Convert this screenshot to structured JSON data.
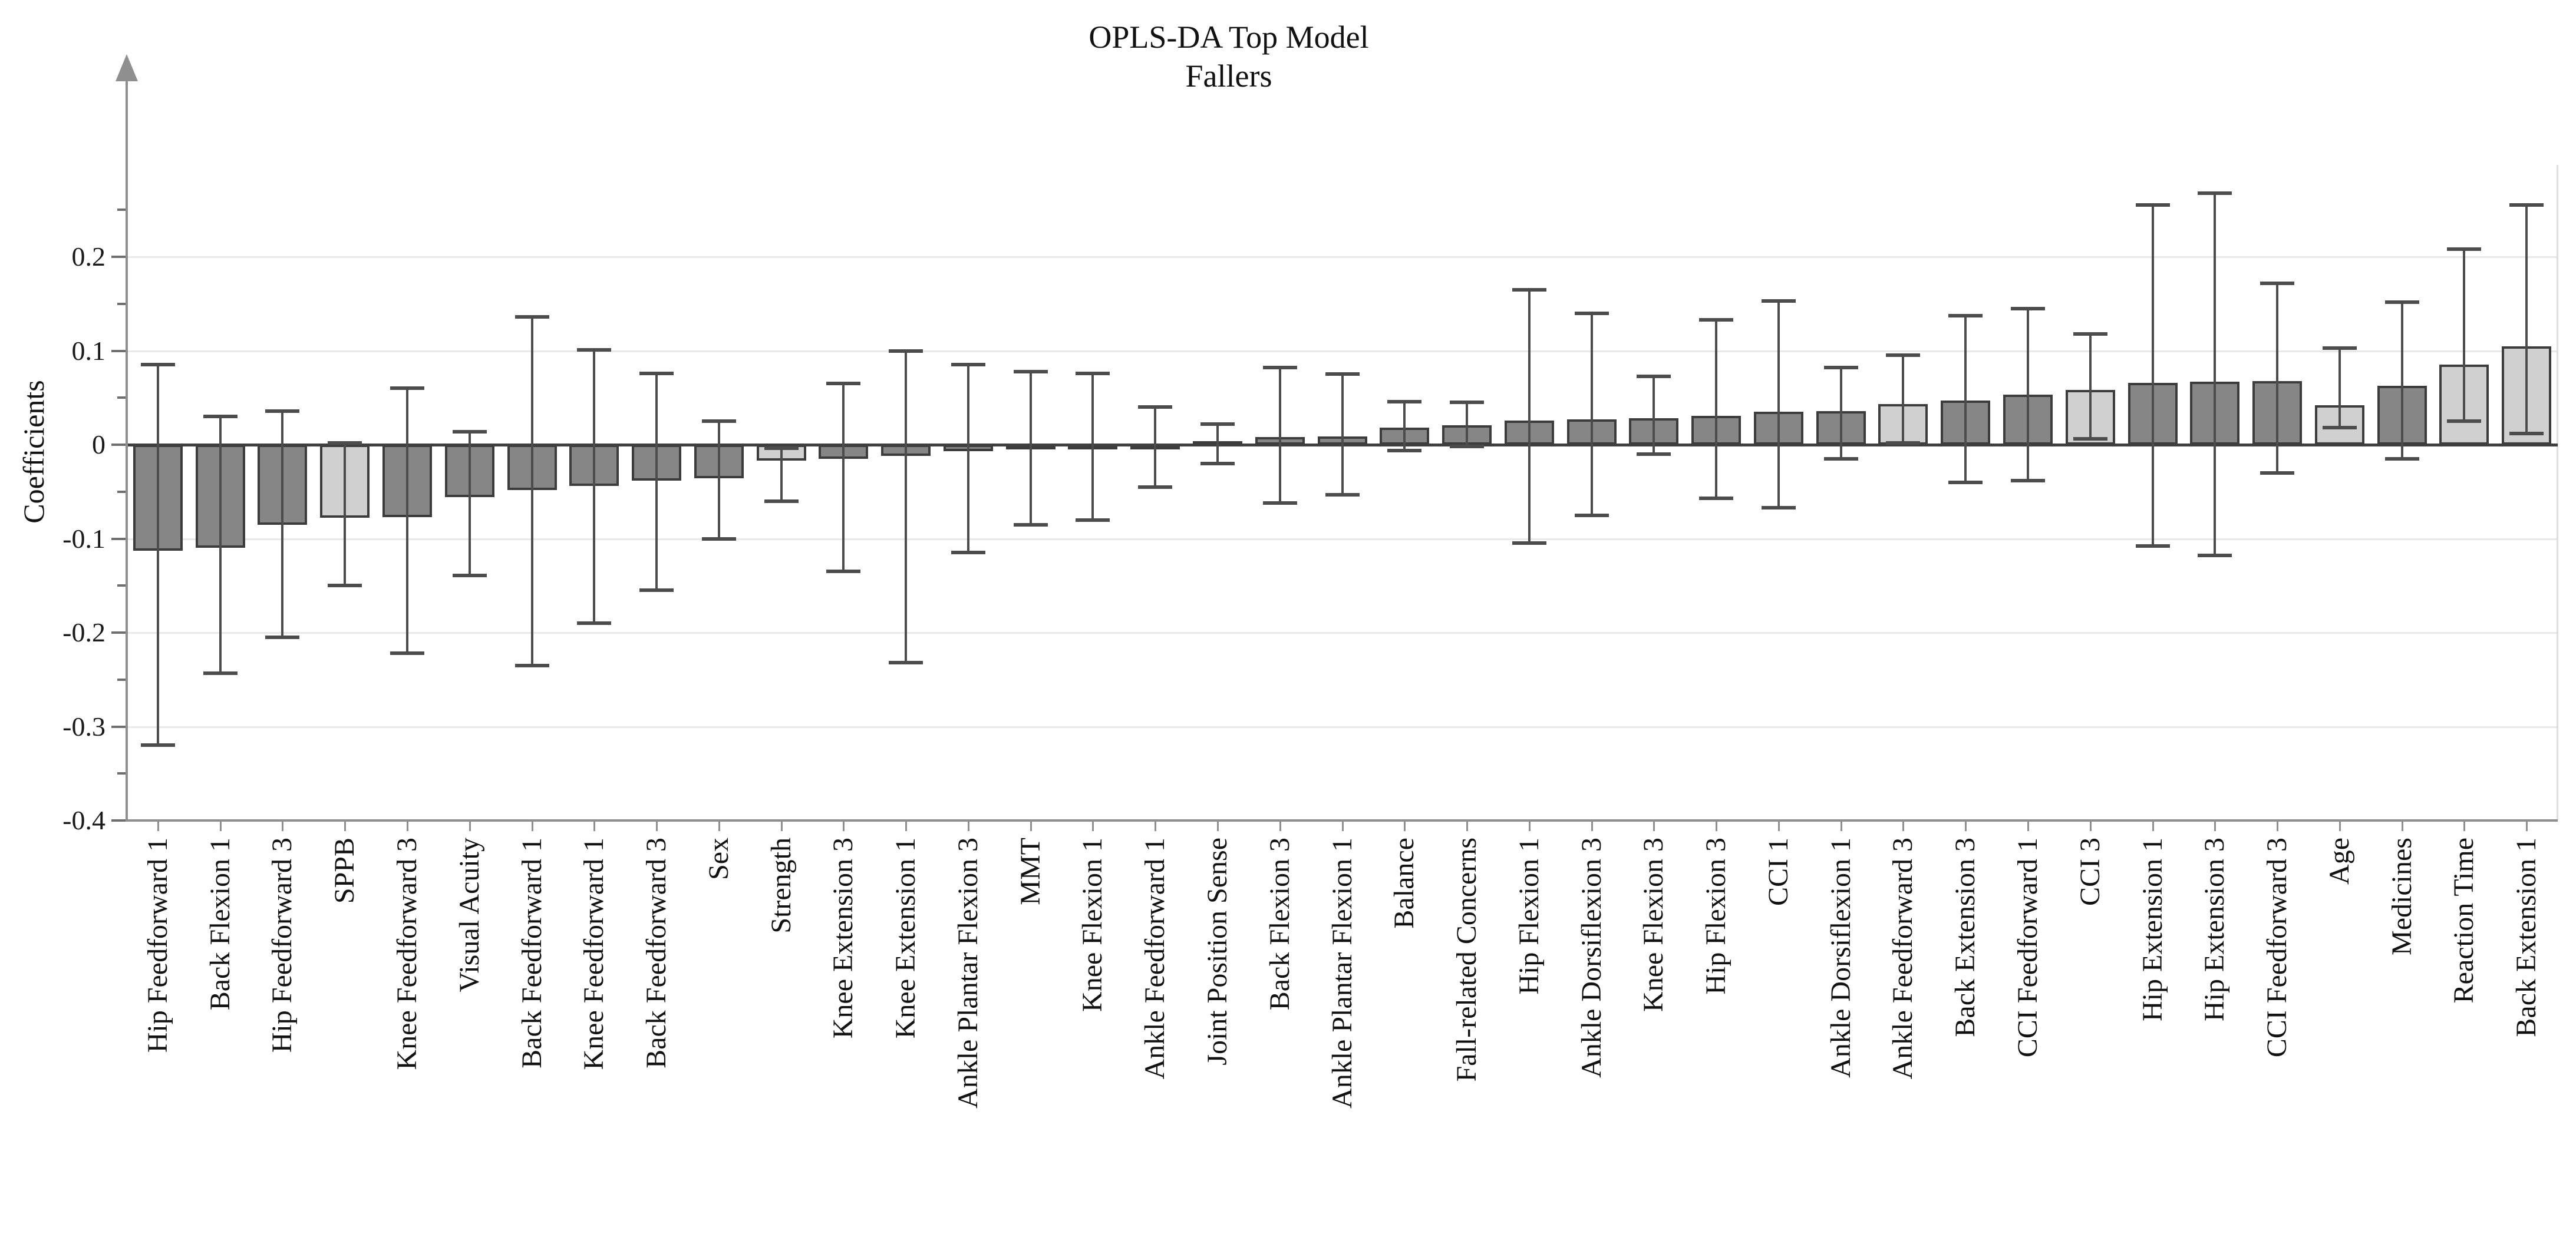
{
  "title": "OPLS-DA Top Model",
  "subtitle": "Fallers",
  "chart_data": {
    "type": "bar",
    "title": "OPLS-DA Top Model",
    "subtitle": "Fallers",
    "xlabel": "",
    "ylabel": "Coefficients",
    "ylim": [
      -0.4,
      0.27
    ],
    "grid": "horizontal",
    "legend_position": "none",
    "ytick_labels": [
      "0.2",
      "0.1",
      "0",
      "-0.1",
      "-0.2",
      "-0.3",
      "-0.4"
    ],
    "ytick_values": [
      0.2,
      0.1,
      0,
      -0.1,
      -0.2,
      -0.3,
      -0.4
    ],
    "minor_tick_values": [
      0.25,
      0.15,
      0.05,
      -0.05,
      -0.15,
      -0.25,
      -0.35
    ],
    "bar_color_dark": "#868686",
    "bar_color_light": "#d0d0d0",
    "bar_border_color": "#3c3c3c",
    "error_bar_color": "#4c4c4c",
    "categories": [
      "Hip Feedforward 1",
      "Back Flexion 1",
      "Hip Feedforward 3",
      "SPPB",
      "Knee Feedforward 3",
      "Visual Acuity",
      "Back Feedforward 1",
      "Knee Feedforward 1",
      "Back Feedforward 3",
      "Sex",
      "Strength",
      "Knee Extension 3",
      "Knee Extension 1",
      "Ankle Plantar Flexion 3",
      "MMT",
      "Knee Flexion 1",
      "Ankle Feedforward 1",
      "Joint Position Sense",
      "Back Flexion 3",
      "Ankle Plantar Flexion 1",
      "Balance",
      "Fall-related Concerns",
      "Hip Flexion 1",
      "Ankle Dorsiflexion 3",
      "Knee Flexion 3",
      "Hip Flexion 3",
      "CCI 1",
      "Ankle Dorsiflexion 1",
      "Ankle Feedforward 3",
      "Back Extension 3",
      "CCI Feedforward 1",
      "CCI 3",
      "Hip Extension 1",
      "Hip Extension 3",
      "CCI Feedforward 3",
      "Age",
      "Medicines",
      "Reaction Time",
      "Back Extension 1"
    ],
    "values": [
      -0.113,
      -0.11,
      -0.085,
      -0.078,
      -0.077,
      -0.056,
      -0.048,
      -0.044,
      -0.038,
      -0.036,
      -0.017,
      -0.015,
      -0.012,
      -0.007,
      -0.004,
      -0.003,
      -0.003,
      0.004,
      0.008,
      0.009,
      0.018,
      0.021,
      0.026,
      0.027,
      0.028,
      0.031,
      0.035,
      0.036,
      0.043,
      0.047,
      0.053,
      0.058,
      0.066,
      0.067,
      0.068,
      0.042,
      0.063,
      0.085,
      0.105
    ],
    "error_low": [
      -0.32,
      -0.243,
      -0.205,
      -0.15,
      -0.222,
      -0.139,
      -0.235,
      -0.19,
      -0.155,
      -0.1,
      -0.06,
      -0.135,
      -0.232,
      -0.115,
      -0.085,
      -0.08,
      -0.045,
      -0.02,
      -0.062,
      -0.053,
      -0.006,
      -0.002,
      -0.105,
      -0.075,
      -0.01,
      -0.057,
      -0.067,
      -0.015,
      0.002,
      -0.04,
      -0.038,
      0.006,
      -0.108,
      -0.118,
      -0.03,
      0.018,
      -0.015,
      0.025,
      0.012
    ],
    "error_high": [
      0.085,
      0.03,
      0.036,
      0.002,
      0.06,
      0.014,
      0.136,
      0.101,
      0.076,
      0.025,
      -0.004,
      0.065,
      0.1,
      0.085,
      0.078,
      0.076,
      0.04,
      0.022,
      0.082,
      0.075,
      0.046,
      0.045,
      0.165,
      0.14,
      0.073,
      0.133,
      0.153,
      0.082,
      0.095,
      0.137,
      0.145,
      0.118,
      0.255,
      0.268,
      0.172,
      0.103,
      0.152,
      0.208,
      0.255
    ],
    "shading": [
      "dark",
      "dark",
      "dark",
      "light",
      "dark",
      "dark",
      "dark",
      "dark",
      "dark",
      "dark",
      "light",
      "dark",
      "dark",
      "dark",
      "dark",
      "dark",
      "dark",
      "dark",
      "dark",
      "dark",
      "dark",
      "dark",
      "dark",
      "dark",
      "dark",
      "dark",
      "dark",
      "dark",
      "light",
      "dark",
      "dark",
      "light",
      "dark",
      "dark",
      "dark",
      "light",
      "dark",
      "light",
      "light"
    ]
  }
}
